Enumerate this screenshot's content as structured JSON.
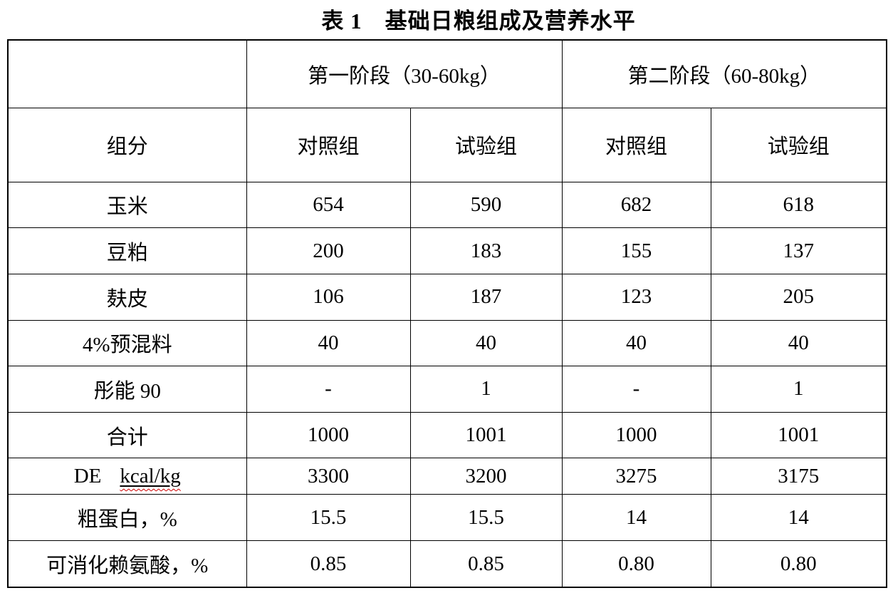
{
  "page": {
    "background_color": "#ffffff",
    "text_color": "#000000",
    "border_color": "#000000",
    "spellcheck_underline_color": "#cc0000"
  },
  "title": "表 1　基础日粮组成及营养水平",
  "table": {
    "stage_headers": [
      "第一阶段（30-60kg）",
      "第二阶段（60-80kg）"
    ],
    "col_headers": [
      "组分",
      "对照组",
      "试验组",
      "对照组",
      "试验组"
    ],
    "rows": [
      {
        "label": "玉米",
        "values": [
          "654",
          "590",
          "682",
          "618"
        ]
      },
      {
        "label": "豆粕",
        "values": [
          "200",
          "183",
          "155",
          "137"
        ]
      },
      {
        "label": "麸皮",
        "values": [
          "106",
          "187",
          "123",
          "205"
        ]
      },
      {
        "label": "4%预混料",
        "values": [
          "40",
          "40",
          "40",
          "40"
        ]
      },
      {
        "label": "彤能 90",
        "values": [
          "-",
          "1",
          "-",
          "1"
        ]
      },
      {
        "label": "合计",
        "values": [
          "1000",
          "1001",
          "1000",
          "1001"
        ]
      },
      {
        "label_parts": [
          {
            "text": "DE",
            "underline": false
          },
          {
            "text": "kcal/kg",
            "underline": true
          }
        ],
        "values": [
          "3300",
          "3200",
          "3275",
          "3175"
        ]
      },
      {
        "label": "粗蛋白，%",
        "values": [
          "15.5",
          "15.5",
          "14",
          "14"
        ]
      },
      {
        "label": "可消化赖氨酸，%",
        "values": [
          "0.85",
          "0.85",
          "0.80",
          "0.80"
        ]
      }
    ]
  }
}
